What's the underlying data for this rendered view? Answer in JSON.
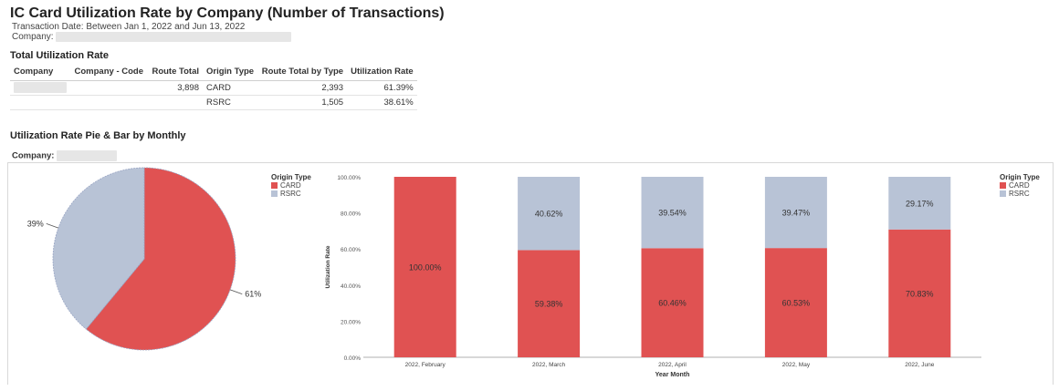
{
  "report": {
    "title": "IC Card Utilization Rate by Company (Number of Transactions)",
    "date_range": "Transaction Date: Between Jan 1, 2022 and Jun 13, 2022",
    "company_label": "Company:"
  },
  "total_section": {
    "title": "Total Utilization Rate",
    "columns": [
      "Company",
      "Company - Code",
      "Route Total",
      "Origin Type",
      "Route Total by Type",
      "Utilization Rate"
    ],
    "rows": [
      {
        "company": "",
        "code": "",
        "route_total": "3,898",
        "origin_type": "CARD",
        "route_total_by_type": "2,393",
        "utilization_rate": "61.39%"
      },
      {
        "company": "",
        "code": "",
        "route_total": "",
        "origin_type": "RSRC",
        "route_total_by_type": "1,505",
        "utilization_rate": "38.61%"
      }
    ]
  },
  "monthly_section": {
    "title": "Utilization Rate Pie & Bar by Monthly",
    "company_label": "Company:"
  },
  "colors": {
    "CARD": "#e05252",
    "RSRC": "#b8c3d6"
  },
  "chart_data": [
    {
      "type": "pie",
      "slices": [
        {
          "name": "CARD",
          "value": 61,
          "label": "61%"
        },
        {
          "name": "RSRC",
          "value": 39,
          "label": "39%"
        }
      ],
      "legend": {
        "title": "Origin Type",
        "entries": [
          "CARD",
          "RSRC"
        ],
        "placement": "top-right"
      }
    },
    {
      "type": "bar",
      "stacked": true,
      "categories": [
        "2022, February",
        "2022, March",
        "2022, April",
        "2022, May",
        "2022, June"
      ],
      "series": [
        {
          "name": "CARD",
          "values": [
            100.0,
            59.38,
            60.46,
            60.53,
            70.83
          ],
          "labels": [
            "100.00%",
            "59.38%",
            "60.46%",
            "60.53%",
            "70.83%"
          ]
        },
        {
          "name": "RSRC",
          "values": [
            0,
            40.62,
            39.54,
            39.47,
            29.17
          ],
          "labels": [
            "",
            "40.62%",
            "39.54%",
            "39.47%",
            "29.17%"
          ]
        }
      ],
      "xlabel": "Year Month",
      "ylabel": "Utilization Rate",
      "ylim": [
        0,
        100
      ],
      "yticks": [
        "0.00%",
        "20.00%",
        "40.00%",
        "60.00%",
        "80.00%",
        "100.00%"
      ],
      "legend": {
        "title": "Origin Type",
        "entries": [
          "CARD",
          "RSRC"
        ],
        "placement": "top-right"
      }
    }
  ]
}
